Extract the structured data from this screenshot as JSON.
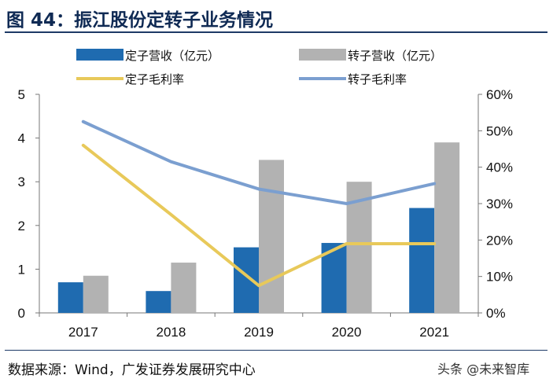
{
  "page": {
    "title": "图 44：振江股份定转子业务情况",
    "source": "数据来源：Wind，广发证券发展研究中心",
    "watermark": "头条 @未来智库"
  },
  "chart_data": {
    "type": "bar",
    "title": "图 44：振江股份定转子业务情况",
    "categories": [
      "2017",
      "2018",
      "2019",
      "2020",
      "2021"
    ],
    "y_left": {
      "ylim": [
        0,
        5
      ],
      "ticks": [
        "0",
        "1",
        "2",
        "3",
        "4",
        "5"
      ]
    },
    "y_right": {
      "ylim": [
        0,
        60
      ],
      "ticks": [
        "0%",
        "10%",
        "20%",
        "30%",
        "40%",
        "50%",
        "60%"
      ]
    },
    "bar_series": [
      {
        "name": "定子营收（亿元）",
        "axis": "left",
        "color": "#1f6bb0",
        "values": [
          0.7,
          0.5,
          1.5,
          1.6,
          2.4
        ]
      },
      {
        "name": "转子营收（亿元）",
        "axis": "left",
        "color": "#b2b2b2",
        "values": [
          0.85,
          1.15,
          3.5,
          3.0,
          3.9
        ]
      }
    ],
    "line_series": [
      {
        "name": "定子毛利率",
        "axis": "right",
        "color": "#e8c95a",
        "values": [
          46,
          27,
          7.5,
          19,
          19
        ]
      },
      {
        "name": "转子毛利率",
        "axis": "right",
        "color": "#7b9fd0",
        "values": [
          52.5,
          41.5,
          34,
          30,
          35.5
        ]
      }
    ],
    "legend_position": "top"
  }
}
